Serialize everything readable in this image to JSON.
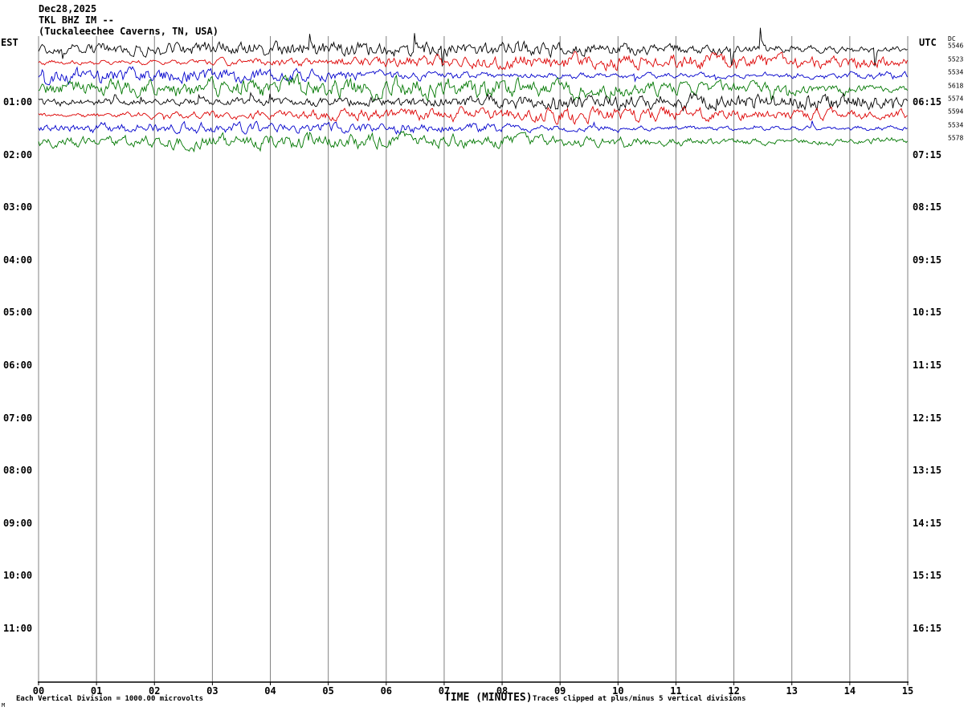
{
  "title": {
    "date": "Dec28,2025",
    "station": "TKL BHZ IM --",
    "location": "(Tuckaleechee Caverns, TN, USA)"
  },
  "axes": {
    "left_label": "EST",
    "right_label": "UTC",
    "x_label": "TIME (MINUTES)",
    "x_ticks": [
      "00",
      "01",
      "02",
      "03",
      "04",
      "05",
      "06",
      "07",
      "08",
      "09",
      "10",
      "11",
      "12",
      "13",
      "14",
      "15"
    ],
    "left_ticks": [
      "01:00",
      "02:00",
      "03:00",
      "04:00",
      "05:00",
      "06:00",
      "07:00",
      "08:00",
      "09:00",
      "10:00",
      "11:00"
    ],
    "right_ticks": [
      "06:15",
      "07:15",
      "08:15",
      "09:15",
      "10:15",
      "11:15",
      "12:15",
      "13:15",
      "14:15",
      "15:15",
      "16:15"
    ],
    "right_small_header": "DC"
  },
  "footer": {
    "scale_note": "Each Vertical Division = 1000.00 microvolts",
    "clip_note": "Traces clipped at plus/minus 5 vertical divisions",
    "corner_mark": "M"
  },
  "colors": {
    "background": "#ffffff",
    "text": "#000000",
    "grid": "#808080",
    "axis": "#000000"
  },
  "chart_data": {
    "type": "line",
    "subtype": "helicorder_seismogram",
    "title": "TKL BHZ IM -- (Tuckaleechee Caverns, TN, USA) Dec28,2025",
    "xlabel": "TIME (MINUTES)",
    "x_range_minutes": [
      0,
      15
    ],
    "minutes_per_line": 15,
    "lines_per_hour_row": 4,
    "hour_rows": 12,
    "rows_with_signal": 2,
    "signal_description": "Continuous ambient seismic noise, first two hour-rows only (05:15-07:15 UTC); remaining rows blank",
    "trace_colors_cycle": [
      "#000000",
      "#dd0000",
      "#0000cc",
      "#007700"
    ],
    "traces": [
      {
        "row": 0,
        "slot": 0,
        "color": "#000000",
        "dc_value": "5546",
        "amp": 4.2,
        "decay": 0.5,
        "spike_prob": 0.02,
        "spike_mag": 24,
        "clip": 44,
        "seed": 11
      },
      {
        "row": 0,
        "slot": 1,
        "color": "#dd0000",
        "dc_value": "5523",
        "amp": 4.8,
        "decay": 0.6,
        "spike_prob": 0.008,
        "spike_mag": 9,
        "clip": 24,
        "seed": 22
      },
      {
        "row": 0,
        "slot": 2,
        "color": "#0000cc",
        "dc_value": "5534",
        "amp": 4.1,
        "decay": 0.58,
        "spike_prob": 0.008,
        "spike_mag": 8,
        "clip": 22,
        "seed": 33
      },
      {
        "row": 0,
        "slot": 3,
        "color": "#007700",
        "dc_value": "5618",
        "amp": 5.3,
        "decay": 0.65,
        "spike_prob": 0.01,
        "spike_mag": 9,
        "clip": 25,
        "seed": 44
      },
      {
        "row": 1,
        "slot": 0,
        "color": "#000000",
        "dc_value": "5574",
        "amp": 4.2,
        "decay": 0.5,
        "spike_prob": 0.016,
        "spike_mag": 16,
        "clip": 38,
        "seed": 55
      },
      {
        "row": 1,
        "slot": 1,
        "color": "#dd0000",
        "dc_value": "5594",
        "amp": 4.8,
        "decay": 0.6,
        "spike_prob": 0.008,
        "spike_mag": 9,
        "clip": 24,
        "seed": 66
      },
      {
        "row": 1,
        "slot": 2,
        "color": "#0000cc",
        "dc_value": "5534",
        "amp": 4.1,
        "decay": 0.58,
        "spike_prob": 0.008,
        "spike_mag": 8,
        "clip": 22,
        "seed": 77
      },
      {
        "row": 1,
        "slot": 3,
        "color": "#007700",
        "dc_value": "5578",
        "amp": 5.5,
        "decay": 0.65,
        "spike_prob": 0.01,
        "spike_mag": 10,
        "clip": 26,
        "seed": 88
      }
    ],
    "scale_note": "Each Vertical Division = 1000.00 microvolts",
    "clip_note": "Traces clipped at plus/minus 5 vertical divisions",
    "grid": "vertical minute gridlines on"
  }
}
